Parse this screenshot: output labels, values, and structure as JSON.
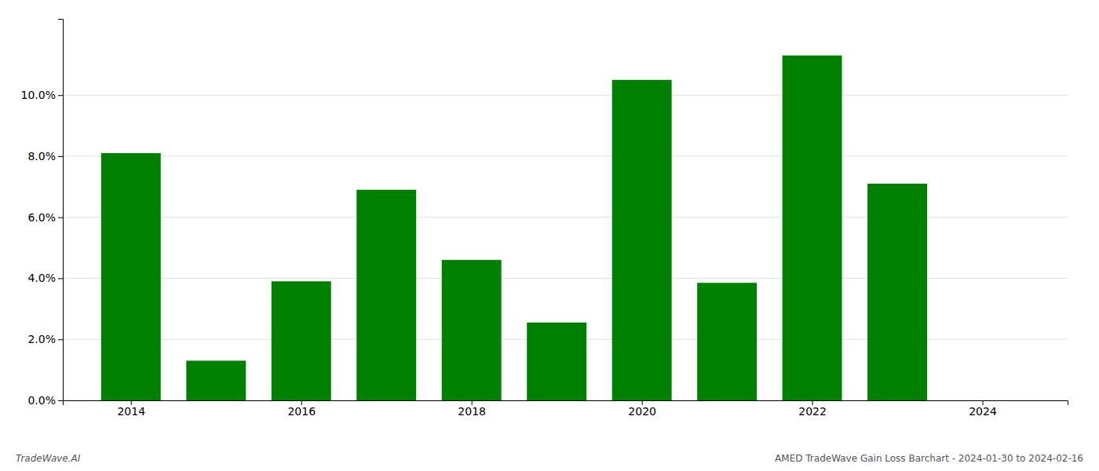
{
  "chart_data": {
    "type": "bar",
    "x": [
      2014,
      2015,
      2016,
      2017,
      2018,
      2019,
      2020,
      2021,
      2022,
      2023
    ],
    "values": [
      0.081,
      0.013,
      0.039,
      0.069,
      0.046,
      0.0255,
      0.105,
      0.0385,
      0.113,
      0.071
    ],
    "color": "#008000",
    "xlim": [
      2013.2,
      2025.0
    ],
    "xticks": [
      2014,
      2016,
      2018,
      2020,
      2022,
      2024
    ],
    "ylim": [
      0,
      0.125
    ],
    "yticks": [
      {
        "value": 0.0,
        "label": "0.0%"
      },
      {
        "value": 0.02,
        "label": "2.0%"
      },
      {
        "value": 0.04,
        "label": "4.0%"
      },
      {
        "value": 0.06,
        "label": "6.0%"
      },
      {
        "value": 0.08,
        "label": "8.0%"
      },
      {
        "value": 0.1,
        "label": "10.0%"
      }
    ],
    "grid": true,
    "annotations": [
      "TradeWave.AI",
      "AMED TradeWave Gain Loss Barchart - 2024-01-30 to 2024-02-16"
    ]
  }
}
